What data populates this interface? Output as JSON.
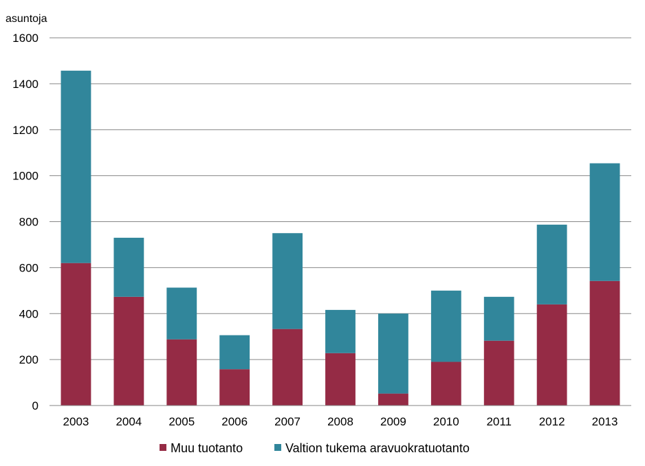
{
  "chart_data": {
    "type": "bar",
    "stacked": true,
    "ylabel": "asuntoja",
    "ylim": [
      0,
      1600
    ],
    "yticks": [
      0,
      200,
      400,
      600,
      800,
      1000,
      1200,
      1400,
      1600
    ],
    "grid": true,
    "legend_position": "bottom",
    "categories": [
      "2003",
      "2004",
      "2005",
      "2006",
      "2007",
      "2008",
      "2009",
      "2010",
      "2011",
      "2012",
      "2013"
    ],
    "series": [
      {
        "name": "Muu tuotanto",
        "color": "#952b45",
        "values": [
          620,
          473,
          288,
          158,
          333,
          228,
          52,
          190,
          282,
          440,
          542
        ]
      },
      {
        "name": "Valtion tukema aravuokratuotanto",
        "color": "#31869b",
        "values": [
          837,
          257,
          225,
          148,
          417,
          188,
          348,
          310,
          191,
          347,
          512
        ]
      }
    ]
  }
}
